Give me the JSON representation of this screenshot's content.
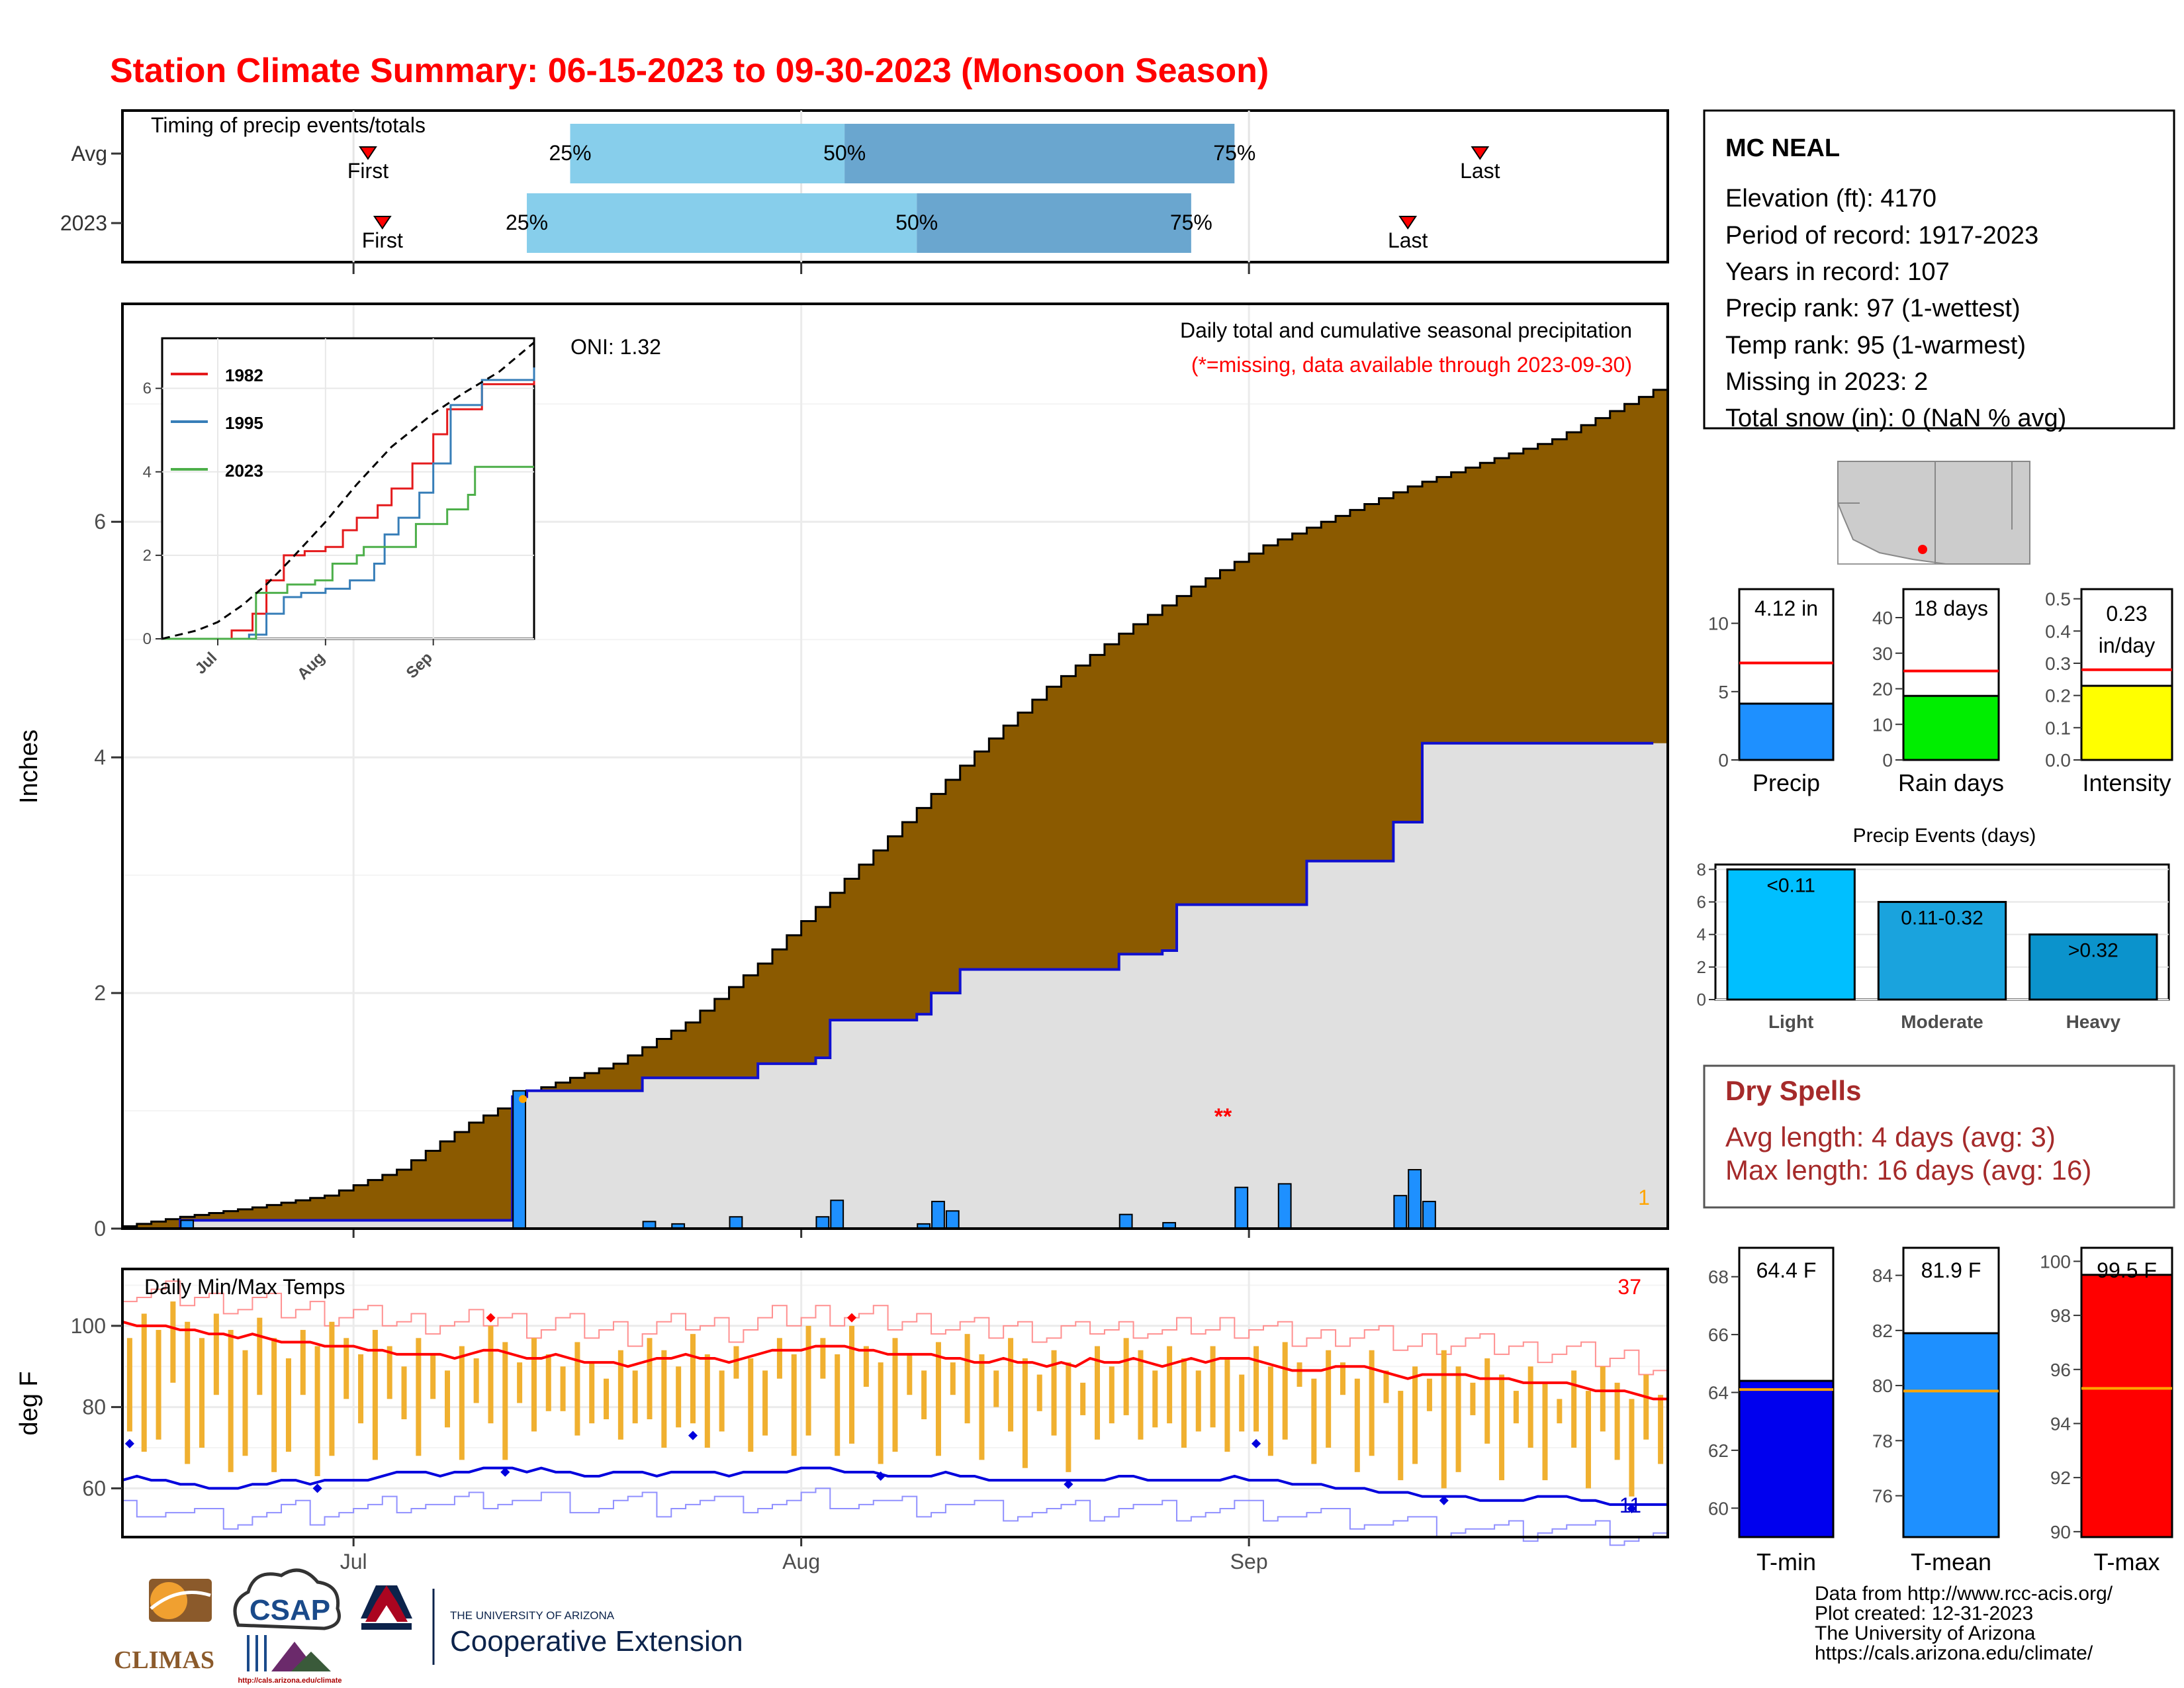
{
  "title": "Station Climate Summary: 06-15-2023 to 09-30-2023 (Monsoon Season)",
  "colors": {
    "title": "#ff0000",
    "precip_area": "#8B5A00",
    "observed_area": "#e0e0e0",
    "observed_line": "#1010d0",
    "daily_bar": "#1e90ff",
    "temp_bar": "#f0b030",
    "tmax_line": "#ff0000",
    "tmin_line": "#0000dd",
    "dry_spells": "#a52a2a",
    "quartile_light": "#87ceeb",
    "quartile_dark": "#6aa6cf"
  },
  "timing": {
    "title": "Timing of precip events/totals",
    "rows": [
      {
        "label": "Avg",
        "first_label": "First",
        "last_label": "Last",
        "q25": "25%",
        "q50": "50%",
        "q75": "75%",
        "first_date": "2023-07-02",
        "q25_date": "2023-07-16",
        "q50_date": "2023-08-04",
        "q75_date": "2023-08-31",
        "last_date": "2023-09-17"
      },
      {
        "label": "2023",
        "first_label": "First",
        "last_label": "Last",
        "q25": "25%",
        "q50": "50%",
        "q75": "75%",
        "first_date": "2023-07-03",
        "q25_date": "2023-07-13",
        "q50_date": "2023-08-09",
        "q75_date": "2023-08-28",
        "last_date": "2023-09-12"
      }
    ]
  },
  "precip_panel": {
    "ylabel": "Inches",
    "oni": "ONI: 1.32",
    "legend_title": "Daily total and cumulative seasonal precipitation",
    "missing_note": "(*=missing, data available through 2023-09-30)",
    "missing_marker": "**",
    "corner_count": "1",
    "yticks": [
      "0",
      "2",
      "4",
      "6"
    ],
    "inset": {
      "years": [
        "1982",
        "1995",
        "2023"
      ],
      "year_colors": [
        "#e41a1c",
        "#377eb8",
        "#4daf4a"
      ],
      "yticks": [
        "0",
        "2",
        "4",
        "6"
      ],
      "xticks": [
        "Jul",
        "Aug",
        "Sep"
      ]
    }
  },
  "temp_panel": {
    "ylabel": "deg F",
    "title": "Daily Min/Max Temps",
    "max_count": "37",
    "min_count": "11",
    "yticks": [
      "60",
      "80",
      "100"
    ],
    "xticks": [
      "Jul",
      "Aug",
      "Sep"
    ]
  },
  "station": {
    "name": "MC NEAL",
    "lines": [
      "Elevation (ft): 4170",
      "Period of record: 1917-2023",
      "Years in record: 107",
      "Precip rank: 97 (1-wettest)",
      "Temp rank: 95 (1-warmest)",
      "Missing in 2023: 2",
      "Total snow (in): 0 (NaN % avg)"
    ]
  },
  "summary_bars": [
    {
      "label": "Precip",
      "value_text": "4.12 in",
      "value": 4.12,
      "avg": 7.1,
      "ymax": 12.5,
      "yticks": [
        "0",
        "5",
        "10"
      ],
      "color": "#1e90ff"
    },
    {
      "label": "Rain days",
      "value_text": "18 days",
      "value": 18,
      "avg": 25,
      "ymax": 48,
      "yticks": [
        "0",
        "10",
        "20",
        "30",
        "40"
      ],
      "color": "#00ee00"
    },
    {
      "label": "Intensity",
      "value_text": "0.23 in/day",
      "value": 0.23,
      "avg": 0.28,
      "ymax": 0.53,
      "yticks": [
        "0.0",
        "0.1",
        "0.2",
        "0.3",
        "0.4",
        "0.5"
      ],
      "color": "#ffff00"
    }
  ],
  "precip_events": {
    "title": "Precip Events (days)",
    "categories": [
      "Light",
      "Moderate",
      "Heavy"
    ],
    "bar_labels": [
      "<0.11",
      "0.11-0.32",
      ">0.32"
    ],
    "values": [
      8,
      6,
      4
    ],
    "colors": [
      "#00bfff",
      "#1aa3dd",
      "#0b93cc"
    ],
    "yticks": [
      "0",
      "2",
      "4",
      "6",
      "8"
    ]
  },
  "dry_spells": {
    "title": "Dry Spells",
    "avg_length": "Avg length: 4 days (avg: 3)",
    "max_length": "Max length: 16 days (avg: 16)"
  },
  "temp_bars": [
    {
      "label": "T-min",
      "value_text": "64.4 F",
      "value": 64.4,
      "avg": 64.1,
      "ymin": 59,
      "ymax": 69,
      "yticks": [
        "60",
        "62",
        "64",
        "66",
        "68"
      ],
      "color": "#0000ee"
    },
    {
      "label": "T-mean",
      "value_text": "81.9 F",
      "value": 81.9,
      "avg": 79.8,
      "ymin": 74.5,
      "ymax": 85,
      "yticks": [
        "76",
        "78",
        "80",
        "82",
        "84"
      ],
      "color": "#1e90ff"
    },
    {
      "label": "T-max",
      "value_text": "99.5 F",
      "value": 99.5,
      "avg": 95.3,
      "ymin": 89.8,
      "ymax": 100.5,
      "yticks": [
        "90",
        "92",
        "94",
        "96",
        "98",
        "100"
      ],
      "color": "#ff0000"
    }
  ],
  "credits": {
    "lines": [
      "Data from http://www.rcc-acis.org/",
      "Plot created: 12-31-2023",
      "The University of Arizona",
      "https://cals.arizona.edu/climate/"
    ],
    "climas": "CLIMAS",
    "csap": "CSAP",
    "csap_url": "http://cals.arizona.edu/climate",
    "ua_small": "THE UNIVERSITY OF ARIZONA",
    "ua_big": "Cooperative Extension"
  },
  "chart_data": [
    {
      "type": "area",
      "title": "Daily total and cumulative seasonal precipitation",
      "ylabel": "Inches",
      "x_range": [
        "2023-06-15",
        "2023-09-30"
      ],
      "ylim": [
        0,
        7.8
      ],
      "average_cumulative": {
        "x": [
          "2023-06-15",
          "2023-06-20",
          "2023-06-25",
          "2023-06-30",
          "2023-07-05",
          "2023-07-10",
          "2023-07-15",
          "2023-07-20",
          "2023-07-25",
          "2023-07-30",
          "2023-08-04",
          "2023-08-09",
          "2023-08-14",
          "2023-08-19",
          "2023-08-24",
          "2023-08-29",
          "2023-09-03",
          "2023-09-08",
          "2023-09-13",
          "2023-09-18",
          "2023-09-23",
          "2023-09-30"
        ],
        "y": [
          0.0,
          0.1,
          0.18,
          0.28,
          0.5,
          0.9,
          1.2,
          1.4,
          1.75,
          2.25,
          2.85,
          3.45,
          4.05,
          4.6,
          5.05,
          5.45,
          5.8,
          6.05,
          6.3,
          6.5,
          6.7,
          7.12
        ]
      },
      "observed_cumulative": {
        "x": [
          "2023-06-15",
          "2023-06-19",
          "2023-07-12",
          "2023-07-13",
          "2023-07-21",
          "2023-07-29",
          "2023-08-02",
          "2023-08-03",
          "2023-08-09",
          "2023-08-10",
          "2023-08-12",
          "2023-08-23",
          "2023-08-26",
          "2023-08-27",
          "2023-09-05",
          "2023-09-07",
          "2023-09-10",
          "2023-09-11",
          "2023-09-13",
          "2023-09-30"
        ],
        "y": [
          0.0,
          0.07,
          1.12,
          1.17,
          1.28,
          1.4,
          1.45,
          1.77,
          1.82,
          2.0,
          2.2,
          2.33,
          2.36,
          2.75,
          3.12,
          3.12,
          3.12,
          3.45,
          4.12,
          4.12
        ]
      },
      "daily_bars": {
        "x": [
          "2023-06-19",
          "2023-07-12",
          "2023-07-21",
          "2023-07-23",
          "2023-07-27",
          "2023-08-02",
          "2023-08-03",
          "2023-08-09",
          "2023-08-10",
          "2023-08-11",
          "2023-08-23",
          "2023-08-26",
          "2023-08-31",
          "2023-09-03",
          "2023-09-11",
          "2023-09-12",
          "2023-09-13"
        ],
        "y": [
          0.07,
          1.17,
          0.06,
          0.04,
          0.1,
          0.1,
          0.24,
          0.04,
          0.23,
          0.15,
          0.12,
          0.05,
          0.35,
          0.38,
          0.28,
          0.5,
          0.23
        ]
      }
    },
    {
      "type": "line",
      "title": "",
      "series": [
        {
          "name": "1982",
          "x": [
            "06-15",
            "07-05",
            "07-11",
            "07-15",
            "07-20",
            "07-26",
            "08-01",
            "08-06",
            "08-10",
            "08-16",
            "08-20",
            "08-26",
            "09-01",
            "09-05",
            "09-15",
            "09-30"
          ],
          "y": [
            0,
            0.2,
            0.6,
            1.4,
            2.0,
            2.1,
            2.2,
            2.6,
            2.9,
            3.2,
            3.6,
            4.2,
            4.9,
            5.5,
            6.1,
            6.2
          ]
        },
        {
          "name": "1995",
          "x": [
            "06-15",
            "07-10",
            "07-15",
            "07-20",
            "07-25",
            "08-01",
            "08-08",
            "08-15",
            "08-18",
            "08-22",
            "08-28",
            "09-01",
            "09-06",
            "09-15",
            "09-30"
          ],
          "y": [
            0,
            0.1,
            0.6,
            1.0,
            1.1,
            1.2,
            1.4,
            1.8,
            2.5,
            2.9,
            3.5,
            4.2,
            5.6,
            6.2,
            6.5
          ]
        },
        {
          "name": "2023",
          "x": [
            "06-15",
            "07-12",
            "07-21",
            "07-29",
            "08-03",
            "08-10",
            "08-12",
            "08-27",
            "09-05",
            "09-11",
            "09-13",
            "09-30"
          ],
          "y": [
            0,
            1.1,
            1.3,
            1.4,
            1.8,
            2.0,
            2.2,
            2.75,
            3.1,
            3.45,
            4.12,
            4.12
          ]
        },
        {
          "name": "",
          "x": [
            "06-15",
            "06-25",
            "07-01",
            "07-08",
            "07-15",
            "07-22",
            "08-01",
            "08-10",
            "08-20",
            "09-01",
            "09-10",
            "09-20",
            "09-30"
          ],
          "y": [
            0,
            0.2,
            0.4,
            0.8,
            1.3,
            1.9,
            2.8,
            3.7,
            4.6,
            5.4,
            5.9,
            6.4,
            7.1
          ]
        }
      ],
      "xticks": [
        "Jul",
        "Aug",
        "Sep"
      ],
      "ylim": [
        0,
        7.2
      ]
    },
    {
      "type": "bar",
      "title": "Daily Min/Max Temps",
      "ylabel": "deg F",
      "ylim": [
        48,
        114
      ],
      "note": "Vertical bars span daily min to max",
      "avg_max_line": [
        101,
        100,
        100,
        100,
        99,
        99,
        98,
        98,
        97,
        98,
        97,
        96,
        96,
        96,
        95,
        95,
        95,
        94,
        94,
        93,
        93,
        93,
        93,
        92,
        93,
        94,
        94,
        93,
        92,
        92,
        93,
        92,
        91,
        91,
        91,
        90,
        91,
        92,
        92,
        93,
        92,
        92,
        91,
        92,
        93,
        94,
        94,
        94,
        95,
        95,
        95,
        94,
        94,
        93,
        93,
        93,
        93,
        92,
        92,
        91,
        91,
        92,
        91,
        91,
        90,
        91,
        90,
        92,
        91,
        91,
        92,
        91,
        90,
        91,
        92,
        91,
        92,
        92,
        92,
        91,
        90,
        89,
        89,
        89,
        90,
        90,
        90,
        89,
        88,
        87,
        88,
        88,
        88,
        88,
        87,
        87,
        87,
        86,
        86,
        86,
        86,
        85,
        84,
        84,
        84,
        83,
        82,
        82
      ],
      "avg_min_line": [
        62,
        63,
        62,
        62,
        61,
        61,
        60,
        60,
        60,
        61,
        61,
        62,
        62,
        61,
        62,
        62,
        62,
        62,
        63,
        64,
        64,
        64,
        63,
        64,
        64,
        65,
        65,
        65,
        64,
        65,
        64,
        64,
        63,
        63,
        64,
        64,
        64,
        63,
        64,
        64,
        64,
        64,
        63,
        64,
        64,
        64,
        64,
        65,
        65,
        65,
        64,
        64,
        64,
        63,
        63,
        63,
        63,
        64,
        63,
        63,
        62,
        62,
        62,
        62,
        62,
        62,
        62,
        62,
        62,
        63,
        63,
        62,
        62,
        62,
        62,
        62,
        62,
        63,
        62,
        62,
        62,
        61,
        61,
        61,
        60,
        60,
        60,
        59,
        59,
        59,
        58,
        58,
        58,
        58,
        57,
        57,
        57,
        57,
        58,
        58,
        58,
        57,
        57,
        56,
        56,
        56,
        56,
        56
      ],
      "days": 108
    }
  ]
}
